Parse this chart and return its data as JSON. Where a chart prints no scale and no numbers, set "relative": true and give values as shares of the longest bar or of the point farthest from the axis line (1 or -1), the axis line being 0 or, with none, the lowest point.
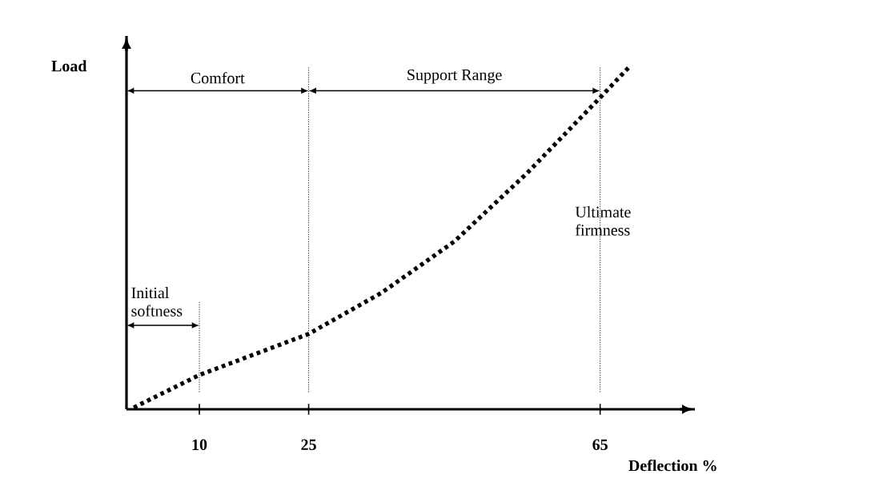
{
  "chart_data": {
    "type": "line",
    "relative": true,
    "xlabel": "Deflection %",
    "ylabel": "Load",
    "x": [
      1,
      10,
      25,
      35,
      45,
      55,
      65,
      69
    ],
    "series": [
      {
        "color": "#000000",
        "values": [
          0.005,
          0.1,
          0.22,
          0.34,
          0.49,
          0.69,
          0.91,
          1
        ]
      }
    ],
    "xlim": [
      0,
      78
    ],
    "xticks": [
      10,
      25,
      65
    ],
    "ref_lines": [
      {
        "axis": "x",
        "value": 10,
        "line_style": "dotted"
      },
      {
        "axis": "x",
        "value": 25,
        "line_style": "dotted"
      },
      {
        "axis": "x",
        "value": 65,
        "line_style": "dotted"
      }
    ],
    "annotations": [
      "Comfort",
      "Support Range",
      "Initial softness",
      "Ultimate firmness"
    ],
    "marker": "none",
    "line_style": "dotted",
    "grid": false
  }
}
